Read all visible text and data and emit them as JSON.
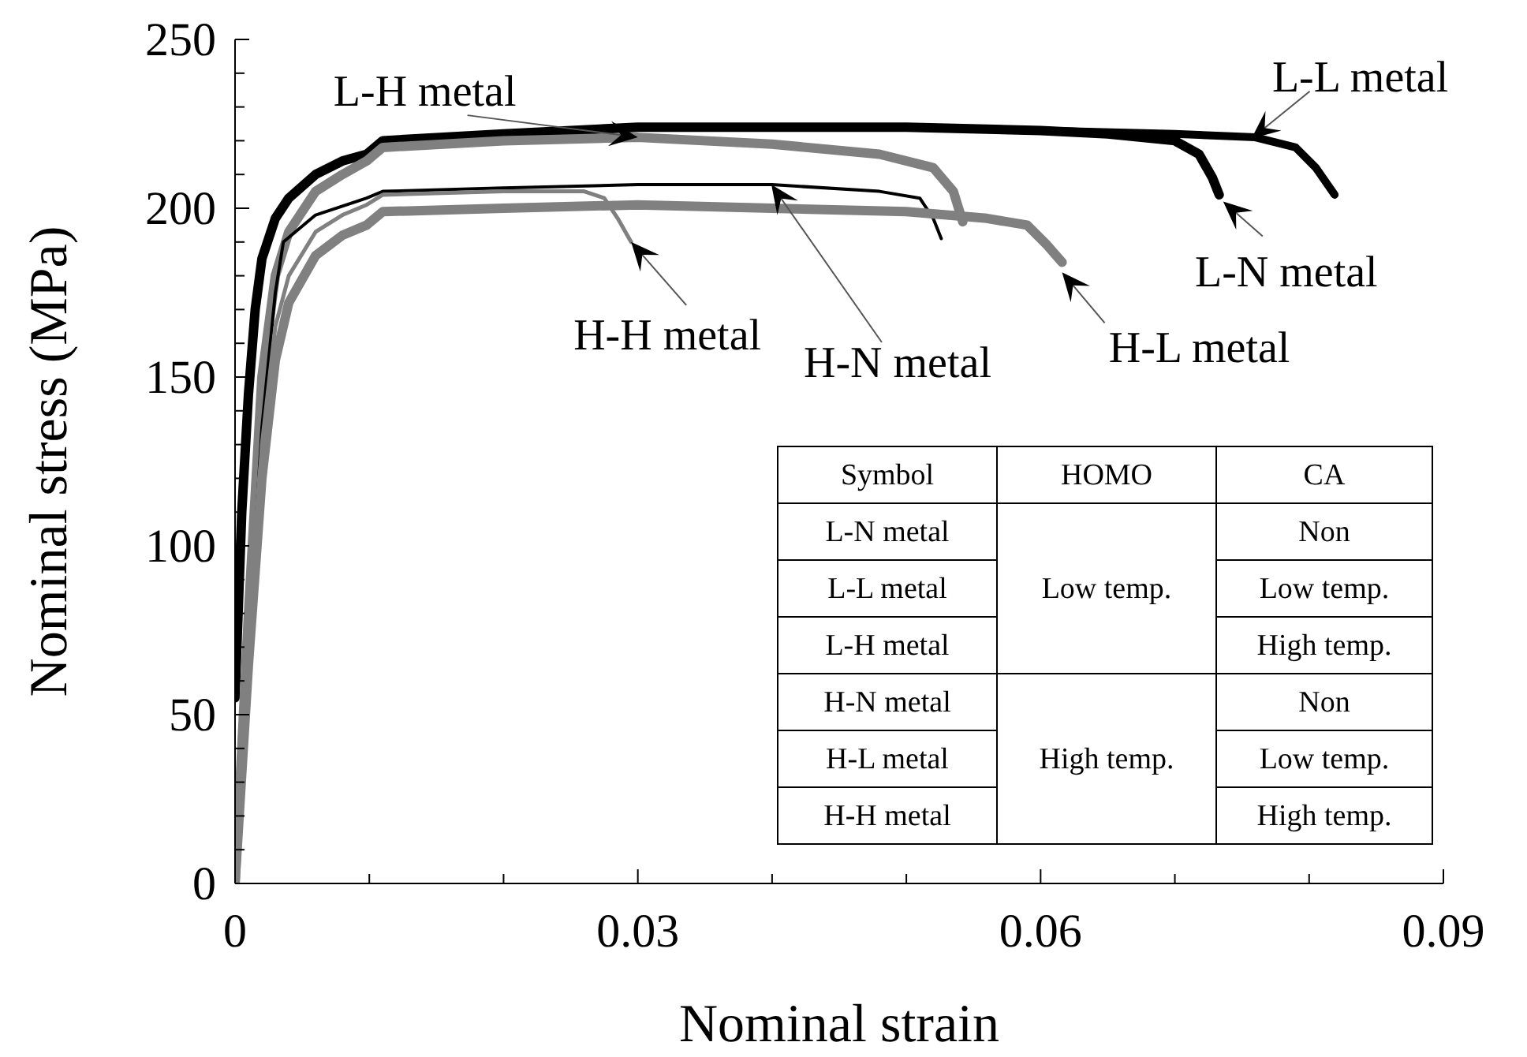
{
  "chart_data": [
    {
      "type": "line",
      "xlabel": "Nominal strain",
      "ylabel": "Nominal stress (MPa)",
      "xlim": [
        0,
        0.09
      ],
      "xticks": [
        0,
        {
          "value": 0.01,
          "label": null
        },
        {
          "value": 0.02,
          "label": null
        },
        0.03,
        {
          "value": 0.04,
          "label": null
        },
        {
          "value": 0.05,
          "label": null
        },
        0.06,
        {
          "value": 0.07,
          "label": null
        },
        {
          "value": 0.08,
          "label": null
        },
        0.09
      ],
      "ylim": [
        0,
        250
      ],
      "yticks": [
        0,
        {
          "value": 10,
          "label": null
        },
        {
          "value": 20,
          "label": null
        },
        {
          "value": 30,
          "label": null
        },
        {
          "value": 40,
          "label": null
        },
        50,
        {
          "value": 60,
          "label": null
        },
        {
          "value": 70,
          "label": null
        },
        {
          "value": 80,
          "label": null
        },
        {
          "value": 90,
          "label": null
        },
        100,
        {
          "value": 110,
          "label": null
        },
        {
          "value": 120,
          "label": null
        },
        {
          "value": 130,
          "label": null
        },
        {
          "value": 140,
          "label": null
        },
        150,
        {
          "value": 160,
          "label": null
        },
        {
          "value": 170,
          "label": null
        },
        {
          "value": 180,
          "label": null
        },
        {
          "value": 190,
          "label": null
        },
        200,
        {
          "value": 210,
          "label": null
        },
        {
          "value": 220,
          "label": null
        },
        {
          "value": 230,
          "label": null
        },
        {
          "value": 240,
          "label": null
        },
        250
      ],
      "grid": false,
      "legend": false,
      "marker": "none",
      "line_style": "solid",
      "series": [
        {
          "color": "#000000",
          "x": [
            0,
            0.0005,
            0.001,
            0.0015,
            0.002,
            0.003,
            0.004,
            0.006,
            0.008,
            0.0098,
            0.011,
            0.02,
            0.03,
            0.04,
            0.05,
            0.06,
            0.065,
            0.07,
            0.0718,
            0.0728,
            0.0733
          ],
          "values": [
            55,
            110,
            145,
            170,
            185,
            197,
            203,
            210,
            214,
            216,
            220,
            222,
            224,
            224,
            224,
            223,
            222,
            220,
            216,
            209,
            204
          ]
        },
        {
          "color": "#000000",
          "x": [
            0,
            0.0005,
            0.001,
            0.0015,
            0.002,
            0.003,
            0.004,
            0.006,
            0.008,
            0.0098,
            0.011,
            0.02,
            0.03,
            0.04,
            0.05,
            0.06,
            0.07,
            0.076,
            0.079,
            0.0805,
            0.0819
          ],
          "values": [
            55,
            110,
            145,
            170,
            185,
            197,
            203,
            210,
            214,
            216,
            220,
            222,
            224,
            224,
            224,
            223,
            222,
            221,
            218,
            212,
            204
          ]
        },
        {
          "color": "#808080",
          "x": [
            0,
            0.001,
            0.002,
            0.003,
            0.004,
            0.006,
            0.008,
            0.0098,
            0.011,
            0.02,
            0.03,
            0.04,
            0.048,
            0.052,
            0.0535,
            0.0542
          ],
          "values": [
            0,
            80,
            150,
            180,
            193,
            205,
            210,
            214,
            218,
            220,
            221,
            219,
            216,
            212,
            205,
            196
          ]
        },
        {
          "color": "#000000",
          "x": [
            0,
            0.001,
            0.002,
            0.003,
            0.0036,
            0.006,
            0.0098,
            0.011,
            0.02,
            0.03,
            0.04,
            0.048,
            0.051,
            0.052,
            0.0526
          ],
          "values": [
            0,
            70,
            135,
            175,
            190,
            198,
            203,
            205,
            206,
            207,
            207,
            205,
            203,
            197,
            191
          ]
        },
        {
          "color": "#808080",
          "x": [
            0,
            0.001,
            0.002,
            0.003,
            0.004,
            0.006,
            0.008,
            0.0098,
            0.011,
            0.02,
            0.03,
            0.04,
            0.05,
            0.056,
            0.059,
            0.0605,
            0.0616
          ],
          "values": [
            0,
            65,
            120,
            155,
            172,
            186,
            192,
            195,
            199,
            200,
            201,
            200,
            199,
            197,
            195,
            189,
            184
          ]
        },
        {
          "color": "#808080",
          "x": [
            0,
            0.001,
            0.002,
            0.003,
            0.004,
            0.006,
            0.008,
            0.0098,
            0.011,
            0.02,
            0.026,
            0.0275,
            0.0285,
            0.0295
          ],
          "values": [
            0,
            70,
            130,
            165,
            180,
            193,
            198,
            201,
            204,
            205,
            205,
            203,
            197,
            190
          ]
        }
      ],
      "annotations": [
        {
          "text": "L-H metal",
          "x": 0.03,
          "y": 221
        },
        "H-N metal",
        {
          "text": "L-L metal",
          "x": 0.0757,
          "y": 220.6
        },
        {
          "text": "L-N metal",
          "x": 0.0736,
          "y": 202
        },
        {
          "text": "H-H metal",
          "x": 0.0295,
          "y": 190
        },
        {
          "text": "H-L metal",
          "x": 0.0616,
          "y": 181
        }
      ]
    },
    {
      "type": "other",
      "categories": [
        "Symbol",
        "HOMO",
        "CA"
      ],
      "y_categories": [
        "L-N metal",
        "L-L metal",
        "L-H metal",
        "H-N metal",
        "H-L metal",
        "H-H metal"
      ],
      "cell_labels": [
        [
          "Low temp.",
          "Non"
        ],
        [
          null,
          "Low temp."
        ],
        [
          null,
          "High temp."
        ],
        [
          "High temp.",
          "Non"
        ],
        [
          null,
          "Low temp."
        ],
        [
          null,
          "High temp."
        ]
      ]
    }
  ]
}
